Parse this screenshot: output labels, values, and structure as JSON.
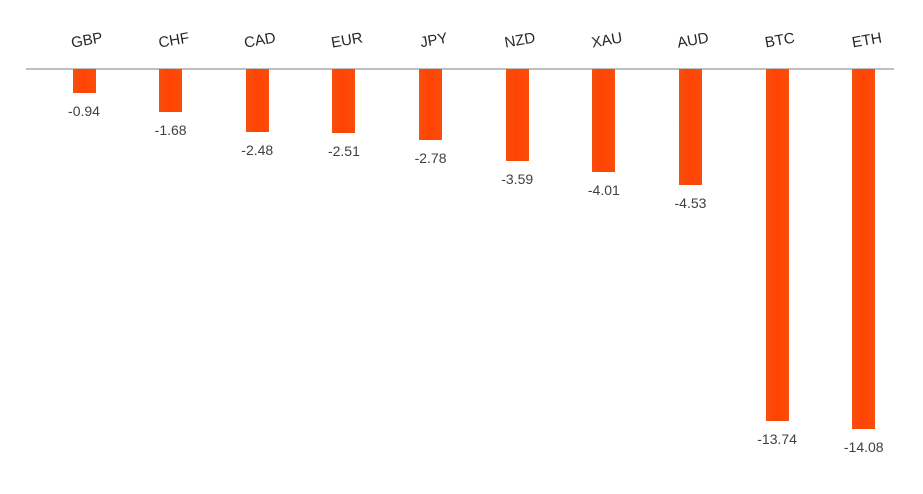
{
  "chart_data": {
    "type": "bar",
    "orientation": "vertical",
    "title": "",
    "xlabel": "",
    "ylabel": "",
    "categories": [
      "GBP",
      "CHF",
      "CAD",
      "EUR",
      "JPY",
      "NZD",
      "XAU",
      "AUD",
      "BTC",
      "ETH"
    ],
    "values": [
      -0.94,
      -1.68,
      -2.48,
      -2.51,
      -2.78,
      -3.59,
      -4.01,
      -4.53,
      -13.74,
      -14.08
    ],
    "data_labels": [
      "-0.94",
      "-1.68",
      "-2.48",
      "-2.51",
      "-2.78",
      "-3.59",
      "-4.01",
      "-4.53",
      "-13.74",
      "-14.08"
    ],
    "ylim": [
      -16,
      0
    ],
    "grid": false,
    "legend": false,
    "y_axis_visible": false,
    "baseline_at_zero": true,
    "colors": {
      "bar": "#ff4500",
      "axis_line": "#bfbfbf",
      "category_label": "#262626",
      "value_label": "#404040",
      "background": "#ffffff"
    }
  }
}
